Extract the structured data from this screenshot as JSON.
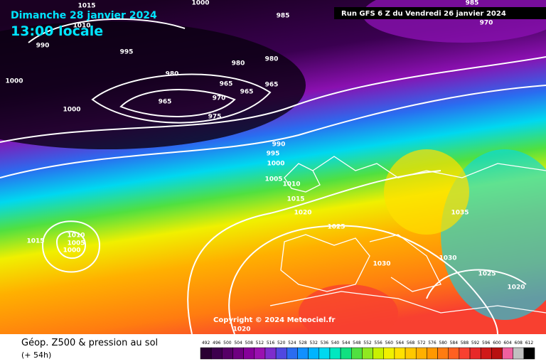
{
  "header": {
    "date": "Dimanche 28 janvier 2024",
    "time": "13:00 locale",
    "run": "Run GFS 6 Z du Vendredi 26 janvier 2024"
  },
  "copyright": "Copyright © 2024 Meteociel.fr",
  "footer": {
    "title": "Géop. Z500 & pression au sol",
    "lead": "(+ 54h)"
  },
  "isobar_labels": [
    1015,
    1000,
    985,
    985,
    970,
    1010,
    990,
    995,
    980,
    980,
    980,
    1000,
    965,
    965,
    965,
    965,
    970,
    975,
    1000,
    990,
    995,
    1000,
    1005,
    1010,
    1015,
    1020,
    1025,
    1035,
    1030,
    1025,
    1020,
    1030,
    1010,
    1005,
    1000,
    1015,
    1020
  ],
  "legend": {
    "ticks": [
      492,
      496,
      500,
      504,
      508,
      512,
      516,
      520,
      524,
      528,
      532,
      536,
      540,
      544,
      548,
      552,
      556,
      560,
      564,
      568,
      572,
      576,
      580,
      584,
      588,
      592,
      596,
      600,
      604,
      608,
      612
    ],
    "colors": [
      "#2a0033",
      "#3d004d",
      "#560066",
      "#6e0080",
      "#86009a",
      "#9a10b0",
      "#7d2ccc",
      "#5048e0",
      "#2a6cf0",
      "#1090ff",
      "#00b4ff",
      "#00d8f0",
      "#00e8c0",
      "#10e080",
      "#50e040",
      "#90e820",
      "#c8f000",
      "#f0f000",
      "#ffe000",
      "#ffc800",
      "#ffb000",
      "#ff9800",
      "#ff7c10",
      "#ff6020",
      "#f84030",
      "#e82828",
      "#d01818",
      "#b81010",
      "#f060a0",
      "#c0c0c0",
      "#000000"
    ]
  }
}
